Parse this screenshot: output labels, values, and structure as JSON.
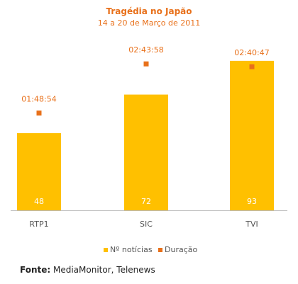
{
  "chart_data": {
    "type": "bar",
    "title": "Tragédia no Japão",
    "subtitle": "14 a 20 de Março de 2011",
    "categories": [
      "RTP1",
      "SIC",
      "TVI"
    ],
    "series": [
      {
        "name": "Nº notícias",
        "type": "bar",
        "values": [
          48,
          72,
          93
        ],
        "color": "#FFC000"
      },
      {
        "name": "Duração",
        "type": "marker",
        "values": [
          "01:48:54",
          "02:43:58",
          "02:40:47"
        ],
        "color": "#E8701A"
      }
    ],
    "ylim": [
      0,
      100
    ],
    "duration_ylim_seconds": [
      0,
      10800
    ],
    "grid": false,
    "legend_position": "bottom",
    "title_color": "#E8701A",
    "axis_line_color": "#BBBBBB"
  },
  "footer": {
    "source_label": "Fonte:",
    "source_text": " MediaMonitor, Telenews"
  }
}
